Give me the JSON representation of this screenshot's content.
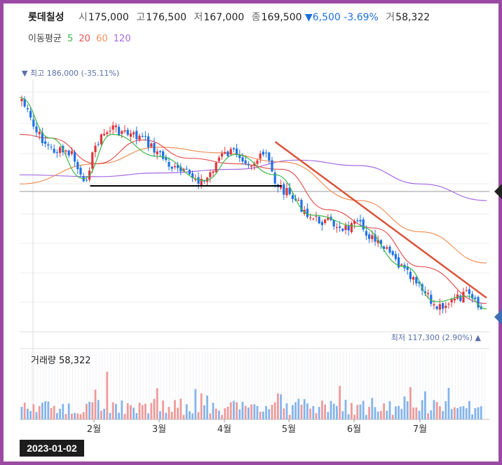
{
  "header": {
    "stock_name": "롯데칠성",
    "open_label": "시",
    "open": "175,000",
    "high_label": "고",
    "high": "176,500",
    "low_label": "저",
    "low": "167,000",
    "close_label": "종",
    "close": "169,500",
    "change": "▼6,500",
    "change_pct": "-3.69%",
    "volume_label": "거",
    "volume": "58,322"
  },
  "moving_average": {
    "label": "이동평균",
    "periods": [
      {
        "label": "5",
        "color": "#3cb84a"
      },
      {
        "label": "20",
        "color": "#e55353"
      },
      {
        "label": "60",
        "color": "#f0925a"
      },
      {
        "label": "120",
        "color": "#a56ae0"
      }
    ]
  },
  "colors": {
    "up": "#e0363c",
    "down": "#1e72e6",
    "trendline": "#d9553a",
    "support": "#000000"
  },
  "chart_data": {
    "type": "candlestick",
    "ylim": [
      117300,
      186000
    ],
    "max_marker": "최고 186,000 (-35.11%)",
    "min_marker": "최저 117,300 (2.90%)",
    "x_ticks": [
      "2월",
      "3월",
      "4월",
      "5월",
      "6월",
      "7월"
    ],
    "close_path": [
      {
        "x": "2023-01-02",
        "y": 182000
      },
      {
        "x": "2023-01-09",
        "y": 172000
      },
      {
        "x": "2023-01-16",
        "y": 167000
      },
      {
        "x": "2023-01-26",
        "y": 165500
      },
      {
        "x": "2023-01-31",
        "y": 157000
      },
      {
        "x": "2023-02-06",
        "y": 169000
      },
      {
        "x": "2023-02-13",
        "y": 173000
      },
      {
        "x": "2023-02-20",
        "y": 171000
      },
      {
        "x": "2023-02-27",
        "y": 170000
      },
      {
        "x": "2023-03-06",
        "y": 166000
      },
      {
        "x": "2023-03-13",
        "y": 161500
      },
      {
        "x": "2023-03-20",
        "y": 160000
      },
      {
        "x": "2023-03-27",
        "y": 158000
      },
      {
        "x": "2023-04-03",
        "y": 165000
      },
      {
        "x": "2023-04-10",
        "y": 166500
      },
      {
        "x": "2023-04-17",
        "y": 163000
      },
      {
        "x": "2023-04-24",
        "y": 165500
      },
      {
        "x": "2023-04-28",
        "y": 158000
      },
      {
        "x": "2023-05-08",
        "y": 152500
      },
      {
        "x": "2023-05-15",
        "y": 148000
      },
      {
        "x": "2023-05-22",
        "y": 147000
      },
      {
        "x": "2023-05-30",
        "y": 145500
      },
      {
        "x": "2023-06-05",
        "y": 146500
      },
      {
        "x": "2023-06-12",
        "y": 142000
      },
      {
        "x": "2023-06-19",
        "y": 138500
      },
      {
        "x": "2023-06-26",
        "y": 133500
      },
      {
        "x": "2023-07-03",
        "y": 129000
      },
      {
        "x": "2023-07-10",
        "y": 124000
      },
      {
        "x": "2023-07-17",
        "y": 125500
      },
      {
        "x": "2023-07-24",
        "y": 127500
      },
      {
        "x": "2023-07-31",
        "y": 123000
      },
      {
        "x": "2023-08-02",
        "y": 122500
      }
    ],
    "ma5_path": [
      {
        "x": "2023-01-02",
        "y": 181000
      },
      {
        "x": "2023-01-16",
        "y": 170000
      },
      {
        "x": "2023-01-31",
        "y": 159000
      },
      {
        "x": "2023-02-13",
        "y": 171000
      },
      {
        "x": "2023-03-06",
        "y": 165000
      },
      {
        "x": "2023-03-27",
        "y": 158500
      },
      {
        "x": "2023-04-10",
        "y": 165500
      },
      {
        "x": "2023-04-28",
        "y": 160000
      },
      {
        "x": "2023-05-15",
        "y": 149000
      },
      {
        "x": "2023-06-05",
        "y": 146000
      },
      {
        "x": "2023-06-26",
        "y": 135000
      },
      {
        "x": "2023-07-10",
        "y": 125500
      },
      {
        "x": "2023-07-24",
        "y": 127000
      },
      {
        "x": "2023-08-02",
        "y": 123500
      }
    ],
    "ma20_path": [
      {
        "x": "2023-01-02",
        "y": 171000
      },
      {
        "x": "2023-01-16",
        "y": 170000
      },
      {
        "x": "2023-02-06",
        "y": 163000
      },
      {
        "x": "2023-02-27",
        "y": 169500
      },
      {
        "x": "2023-03-20",
        "y": 164500
      },
      {
        "x": "2023-04-10",
        "y": 163000
      },
      {
        "x": "2023-05-01",
        "y": 161500
      },
      {
        "x": "2023-05-22",
        "y": 150500
      },
      {
        "x": "2023-06-12",
        "y": 145500
      },
      {
        "x": "2023-07-03",
        "y": 135000
      },
      {
        "x": "2023-08-02",
        "y": 125000
      }
    ],
    "ma60_path": [
      {
        "x": "2023-01-02",
        "y": 157500
      },
      {
        "x": "2023-02-06",
        "y": 163000
      },
      {
        "x": "2023-03-06",
        "y": 167500
      },
      {
        "x": "2023-04-03",
        "y": 166000
      },
      {
        "x": "2023-05-01",
        "y": 163500
      },
      {
        "x": "2023-06-05",
        "y": 153000
      },
      {
        "x": "2023-07-03",
        "y": 144500
      },
      {
        "x": "2023-08-02",
        "y": 136000
      }
    ],
    "ma120_path": [
      {
        "x": "2023-01-02",
        "y": 160000
      },
      {
        "x": "2023-02-06",
        "y": 159500
      },
      {
        "x": "2023-03-06",
        "y": 160500
      },
      {
        "x": "2023-04-10",
        "y": 161500
      },
      {
        "x": "2023-05-08",
        "y": 164000
      },
      {
        "x": "2023-06-05",
        "y": 162500
      },
      {
        "x": "2023-07-03",
        "y": 157500
      },
      {
        "x": "2023-08-02",
        "y": 153000
      }
    ],
    "trendline": [
      {
        "x": "2023-04-28",
        "y": 169000
      },
      {
        "x": "2023-08-02",
        "y": 126500
      }
    ],
    "support_line": [
      {
        "x": "2023-02-03",
        "y": 157000
      },
      {
        "x": "2023-05-01",
        "y": 157000
      }
    ],
    "current_price_marker": 158500,
    "volume_chart": {
      "label": "거래량",
      "value": "58,322"
    }
  },
  "date_display": "2023-01-02"
}
